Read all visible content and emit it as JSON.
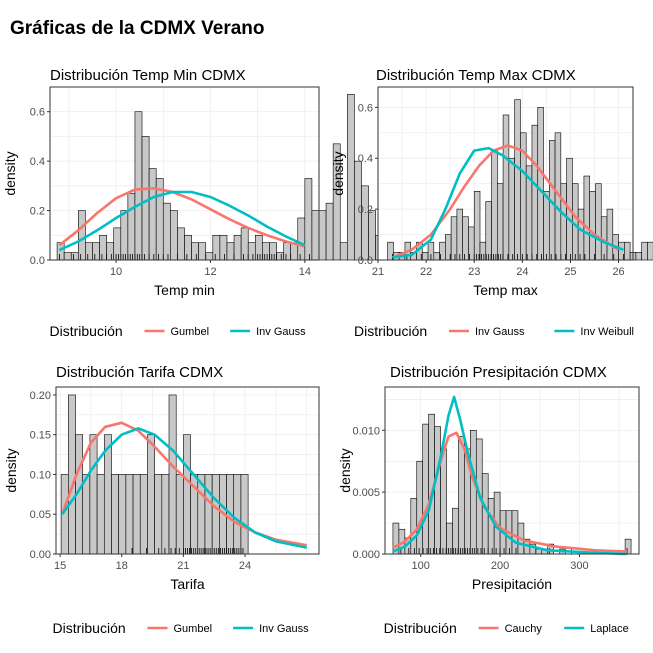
{
  "main_title": "Gráficas de la CDMX Verano",
  "legend_label": "Distribución",
  "colors": {
    "red": "#F8766D",
    "teal": "#00BFC4",
    "bar_fill": "#C8C8C8",
    "bar_stroke": "#000000",
    "grid": "#EBEBEB"
  },
  "chart_data": [
    {
      "type": "histogram",
      "title": "Distribución Temp Min CDMX",
      "xlabel": "Temp min",
      "ylabel": "density",
      "xlim": [
        8.6,
        14.3
      ],
      "ylim": [
        0,
        0.7
      ],
      "xticks": [
        10,
        12,
        14
      ],
      "yticks": [
        0.0,
        0.2,
        0.4,
        0.6
      ],
      "xtick_labels": [
        "10",
        "12",
        "14"
      ],
      "ytick_labels": [
        "0.0",
        "0.2",
        "0.4",
        "0.6"
      ],
      "bins": {
        "start": 8.75,
        "width": 0.15,
        "values": [
          0.07,
          0.03,
          0.03,
          0.2,
          0.07,
          0.07,
          0.1,
          0.07,
          0.13,
          0.2,
          0.27,
          0.6,
          0.5,
          0.37,
          0.33,
          0.23,
          0.2,
          0.13,
          0.1,
          0.07,
          0.07,
          0.03,
          0.1,
          0.1,
          0.07,
          0.1,
          0.13,
          0.07,
          0.1,
          0.07,
          0.07,
          0.03,
          0.07,
          0.07,
          0.17,
          0.33,
          0.2,
          0.2,
          0.23,
          0.47,
          0.07,
          0.67,
          0.4,
          0.3,
          0.2,
          0.1,
          0.03,
          0.03,
          0.03,
          0.07,
          0.07,
          0.07,
          0.07
        ]
      },
      "series": [
        {
          "name": "Gumbel",
          "color": "red",
          "x": [
            8.8,
            9.2,
            9.6,
            10.0,
            10.4,
            10.8,
            11.2,
            11.6,
            12.0,
            12.4,
            12.8,
            13.2,
            13.6,
            14.0
          ],
          "y": [
            0.06,
            0.12,
            0.19,
            0.25,
            0.285,
            0.29,
            0.275,
            0.245,
            0.205,
            0.165,
            0.13,
            0.1,
            0.075,
            0.055
          ]
        },
        {
          "name": "Inv Gauss",
          "color": "teal",
          "x": [
            8.8,
            9.2,
            9.6,
            10.0,
            10.4,
            10.8,
            11.2,
            11.6,
            12.0,
            12.4,
            12.8,
            13.2,
            13.6,
            14.0
          ],
          "y": [
            0.04,
            0.075,
            0.12,
            0.17,
            0.215,
            0.255,
            0.275,
            0.275,
            0.255,
            0.22,
            0.18,
            0.135,
            0.095,
            0.06
          ]
        }
      ],
      "rug": [
        8.8,
        9.1,
        9.25,
        9.4,
        9.55,
        9.7,
        9.8,
        9.9,
        10.0,
        10.05,
        10.1,
        10.15,
        10.2,
        10.25,
        10.3,
        10.35,
        10.4,
        10.45,
        10.5,
        10.55,
        10.6,
        10.7,
        10.8,
        10.9,
        11.0,
        11.1,
        11.3,
        11.5,
        11.7,
        11.9,
        12.1,
        12.3,
        12.5,
        12.7,
        12.8,
        12.9,
        13.0,
        13.05,
        13.1,
        13.15,
        13.2,
        13.25,
        13.3,
        13.35,
        13.4,
        13.5,
        13.6,
        13.7,
        13.9,
        14.1
      ]
    },
    {
      "type": "histogram",
      "title": "Distribución Temp Max CDMX",
      "xlabel": "Temp max",
      "ylabel": "density",
      "xlim": [
        21.0,
        26.3
      ],
      "ylim": [
        0,
        0.68
      ],
      "xticks": [
        21,
        22,
        23,
        24,
        25,
        26
      ],
      "yticks": [
        0.0,
        0.2,
        0.4,
        0.6
      ],
      "xtick_labels": [
        "21",
        "22",
        "23",
        "24",
        "25",
        "26"
      ],
      "ytick_labels": [
        "0.0",
        "0.2",
        "0.4",
        "0.6"
      ],
      "bins": {
        "start": 21.2,
        "width": 0.12,
        "values": [
          0.07,
          0.03,
          0.03,
          0.07,
          0.03,
          0.07,
          0.03,
          0.07,
          0.03,
          0.07,
          0.1,
          0.17,
          0.2,
          0.17,
          0.13,
          0.27,
          0.07,
          0.23,
          0.43,
          0.3,
          0.57,
          0.4,
          0.63,
          0.5,
          0.37,
          0.53,
          0.6,
          0.27,
          0.47,
          0.5,
          0.3,
          0.4,
          0.3,
          0.2,
          0.33,
          0.27,
          0.3,
          0.17,
          0.2,
          0.1,
          0.07,
          0.07,
          0.03,
          0.03,
          0.07,
          0.07
        ]
      },
      "series": [
        {
          "name": "Inv Gauss",
          "color": "red",
          "x": [
            21.3,
            21.7,
            22.1,
            22.5,
            22.8,
            23.1,
            23.4,
            23.7,
            24.0,
            24.3,
            24.7,
            25.1,
            25.5,
            26.0
          ],
          "y": [
            0.01,
            0.04,
            0.1,
            0.2,
            0.29,
            0.37,
            0.43,
            0.45,
            0.43,
            0.37,
            0.27,
            0.17,
            0.1,
            0.04
          ]
        },
        {
          "name": "Inv Weibull",
          "color": "teal",
          "x": [
            21.3,
            21.7,
            22.1,
            22.4,
            22.7,
            23.0,
            23.3,
            23.6,
            24.0,
            24.4,
            24.8,
            25.2,
            25.7,
            26.1
          ],
          "y": [
            0.01,
            0.02,
            0.08,
            0.2,
            0.34,
            0.43,
            0.44,
            0.41,
            0.35,
            0.27,
            0.19,
            0.12,
            0.07,
            0.04
          ]
        }
      ],
      "rug": [
        21.3,
        21.6,
        21.9,
        22.1,
        22.3,
        22.5,
        22.6,
        22.7,
        22.8,
        22.9,
        23.0,
        23.05,
        23.1,
        23.15,
        23.2,
        23.25,
        23.3,
        23.35,
        23.4,
        23.45,
        23.5,
        23.55,
        23.6,
        23.7,
        23.8,
        23.9,
        24.0,
        24.1,
        24.2,
        24.3,
        24.4,
        24.5,
        24.6,
        24.7,
        24.8,
        24.9,
        25.0,
        25.1,
        25.2,
        25.3,
        25.5,
        25.7,
        25.9,
        26.1
      ]
    },
    {
      "type": "histogram",
      "title": "Distribución Tarifa CDMX",
      "xlabel": "Tarifa",
      "ylabel": "density",
      "xlim": [
        14.8,
        27.6
      ],
      "ylim": [
        0,
        0.21
      ],
      "xticks": [
        15,
        18,
        21,
        24
      ],
      "yticks": [
        0.0,
        0.05,
        0.1,
        0.15,
        0.2
      ],
      "xtick_labels": [
        "15",
        "18",
        "21",
        "24"
      ],
      "ytick_labels": [
        "0.00",
        "0.05",
        "0.10",
        "0.15",
        "0.20"
      ],
      "bins": {
        "start": 15.05,
        "width": 0.35,
        "values": [
          0.1,
          0.2,
          0.15,
          0.1,
          0.15,
          0.1,
          0.15,
          0.1,
          0.1,
          0.1,
          0.1,
          0.1,
          0.15,
          0.1,
          0.1,
          0.2,
          0.1,
          0.15,
          0.1,
          0.1,
          0.1,
          0.1,
          0.1,
          0.1,
          0.1,
          0.1
        ]
      },
      "series": [
        {
          "name": "Gumbel",
          "color": "red",
          "x": [
            15.1,
            15.8,
            16.5,
            17.2,
            18.0,
            18.8,
            19.6,
            20.5,
            21.5,
            22.5,
            23.5,
            24.5,
            25.5,
            27.0
          ],
          "y": [
            0.05,
            0.1,
            0.14,
            0.16,
            0.165,
            0.155,
            0.135,
            0.11,
            0.085,
            0.06,
            0.04,
            0.027,
            0.018,
            0.011
          ]
        },
        {
          "name": "Inv Gauss",
          "color": "teal",
          "x": [
            15.1,
            15.8,
            16.5,
            17.2,
            18.0,
            18.8,
            19.6,
            20.5,
            21.5,
            22.5,
            23.5,
            24.5,
            25.5,
            27.0
          ],
          "y": [
            0.05,
            0.075,
            0.105,
            0.13,
            0.15,
            0.158,
            0.15,
            0.13,
            0.1,
            0.07,
            0.045,
            0.027,
            0.016,
            0.008
          ]
        }
      ],
      "rug": [
        18.5,
        19.2,
        19.8,
        20.1,
        20.4,
        20.6,
        20.8,
        21.0,
        21.1,
        21.2,
        21.3,
        21.4,
        21.5,
        21.6,
        21.7,
        21.8,
        21.9,
        22.0,
        22.1,
        22.2,
        22.3,
        22.4,
        22.5,
        22.6,
        22.7,
        22.8,
        22.9,
        23.0,
        23.1,
        23.2,
        23.3,
        23.4,
        23.5,
        23.6,
        23.7,
        23.8,
        23.9
      ]
    },
    {
      "type": "histogram",
      "title": "Distribución Presipitación CDMX",
      "xlabel": "Presipitación",
      "ylabel": "density",
      "xlim": [
        55,
        375
      ],
      "ylim": [
        0,
        0.0135
      ],
      "xticks": [
        100,
        200,
        300
      ],
      "yticks": [
        0.0,
        0.005,
        0.01
      ],
      "xtick_labels": [
        "100",
        "200",
        "300"
      ],
      "ytick_labels": [
        "0.000",
        "0.005",
        "0.010"
      ],
      "bins": {
        "start": 65,
        "width": 7.5,
        "values": [
          0.0025,
          0.002,
          0.0013,
          0.0045,
          0.0075,
          0.0105,
          0.0113,
          0.0103,
          0.0085,
          0.0025,
          0.0037,
          0.0095,
          0.0085,
          0.01,
          0.0093,
          0.0065,
          0.0045,
          0.005,
          0.0035,
          0.0035,
          0.0035,
          0.0025,
          0.0012,
          0.0008,
          0.0004,
          0.0004,
          0.0008,
          0.0,
          0.0004,
          0.0,
          0.0,
          0.0,
          0.0,
          0.0,
          0.0,
          0.0,
          0.0,
          0.0,
          0.0,
          0.0012
        ]
      },
      "series": [
        {
          "name": "Cauchy",
          "color": "red",
          "x": [
            65,
            80,
            95,
            110,
            125,
            135,
            145,
            155,
            165,
            180,
            200,
            230,
            270,
            320,
            360
          ],
          "y": [
            0.0005,
            0.001,
            0.002,
            0.004,
            0.0075,
            0.0095,
            0.0098,
            0.0085,
            0.0062,
            0.0038,
            0.0021,
            0.0011,
            0.0006,
            0.0003,
            0.0002
          ]
        },
        {
          "name": "Laplace",
          "color": "teal",
          "x": [
            65,
            80,
            95,
            110,
            125,
            135,
            142,
            150,
            160,
            175,
            195,
            220,
            260,
            320,
            360
          ],
          "y": [
            0.0002,
            0.0006,
            0.0015,
            0.0035,
            0.0078,
            0.0112,
            0.0127,
            0.0108,
            0.008,
            0.0045,
            0.0022,
            0.0009,
            0.0003,
            0.0001,
            0.0
          ]
        }
      ],
      "rug": [
        75,
        85,
        92,
        98,
        103,
        108,
        112,
        116,
        120,
        124,
        128,
        132,
        135,
        138,
        141,
        144,
        147,
        150,
        153,
        156,
        159,
        162,
        165,
        168,
        172,
        176,
        180,
        185,
        190,
        195,
        200,
        205,
        212,
        220,
        230,
        245,
        262,
        290,
        360
      ]
    }
  ]
}
